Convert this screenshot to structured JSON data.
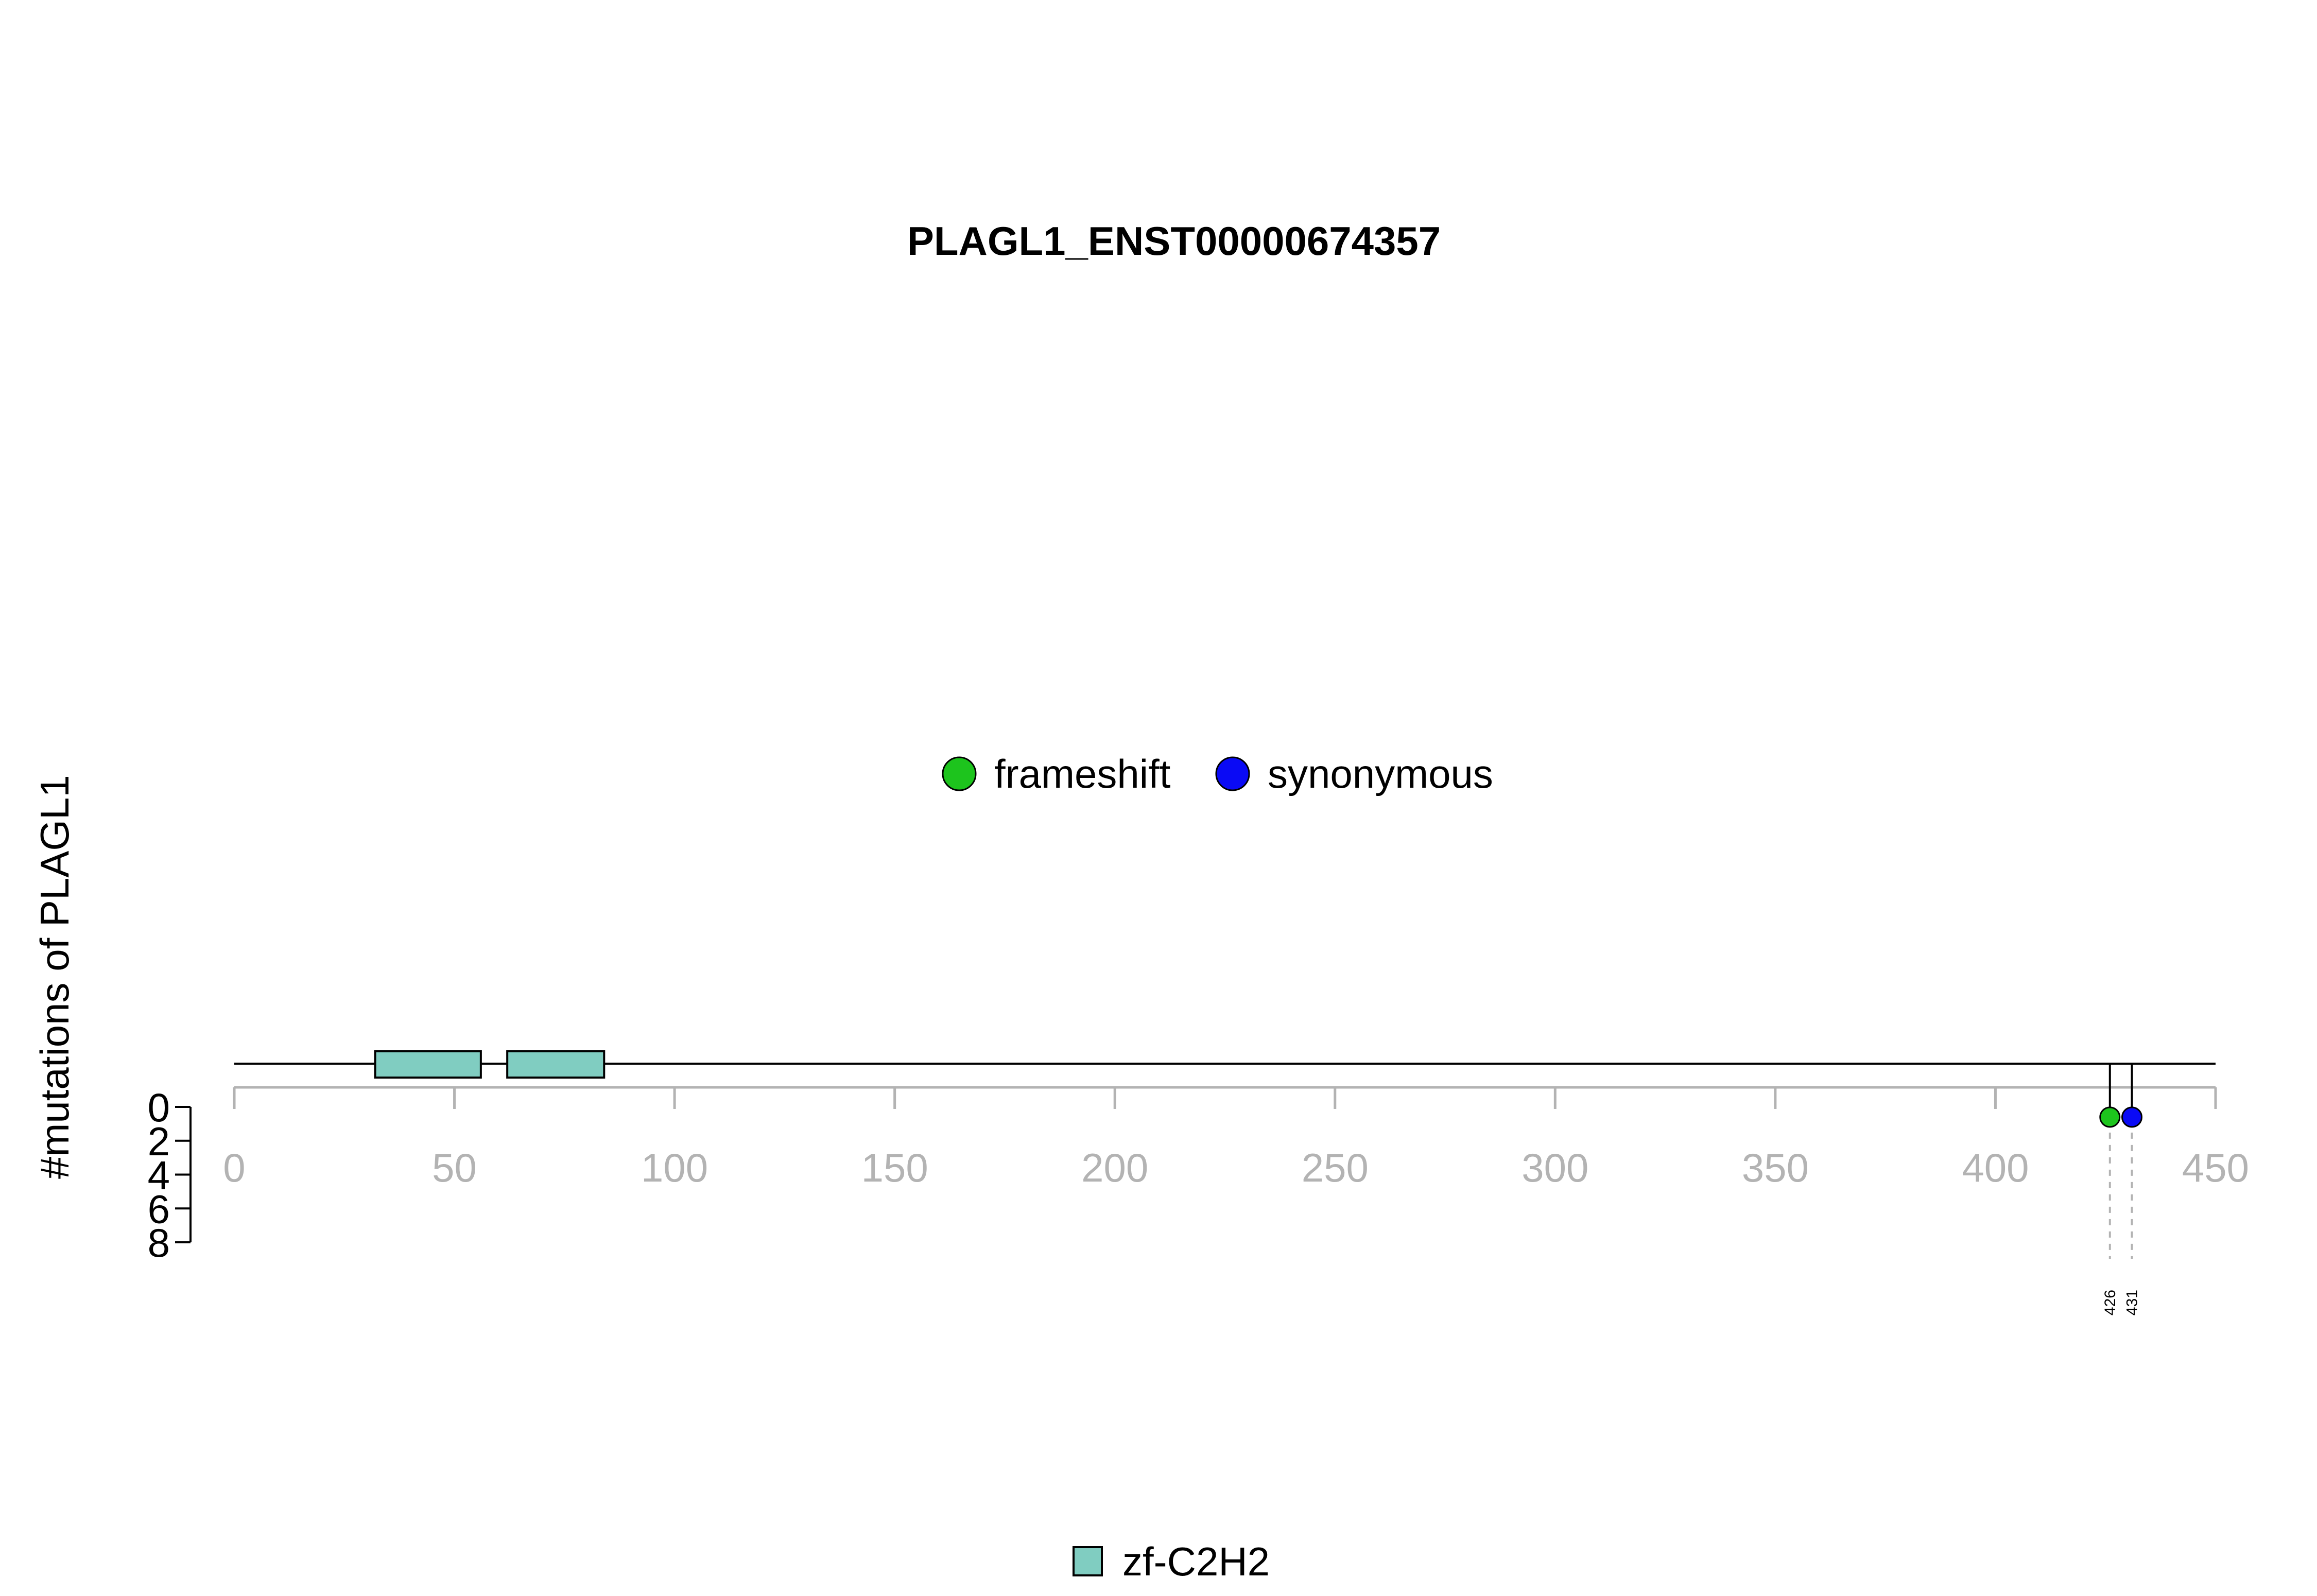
{
  "chart_data": {
    "type": "lollipop",
    "title": "PLAGL1_ENST00000674357",
    "ylabel": "#mutations of PLAGL1",
    "protein_length": 450,
    "x_ticks": [
      0,
      50,
      100,
      150,
      200,
      250,
      300,
      350,
      400,
      450
    ],
    "xlim": [
      0,
      450
    ],
    "y_ticks": [
      0,
      2,
      4,
      6,
      8
    ],
    "ylim": [
      0,
      8
    ],
    "domains": [
      {
        "name": "zf-C2H2",
        "start": 32,
        "end": 56,
        "color": "#80CDC1"
      },
      {
        "name": "zf-C2H2",
        "start": 62,
        "end": 84,
        "color": "#80CDC1"
      }
    ],
    "mutations": [
      {
        "position": 426,
        "label": "426",
        "count": 1,
        "type": "frameshift",
        "color": "#1DC41D"
      },
      {
        "position": 431,
        "label": "431",
        "count": 1,
        "type": "synonymous",
        "color": "#0A0AF5"
      }
    ],
    "mutation_legend": [
      {
        "label": "frameshift",
        "color": "#1DC41D"
      },
      {
        "label": "synonymous",
        "color": "#0A0AF5"
      }
    ],
    "domain_legend": [
      {
        "label": "zf-C2H2",
        "color": "#80CDC1"
      }
    ]
  }
}
